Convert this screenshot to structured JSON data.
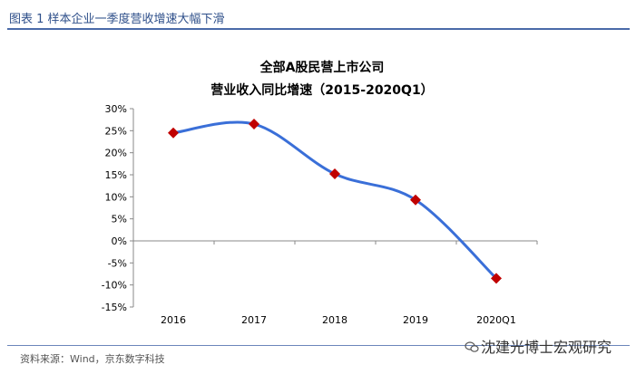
{
  "figure": {
    "title": "图表 1 样本企业一季度营收增速大幅下滑",
    "source": "资料来源：Wind，京东数字科技",
    "watermark": "沈建光博士宏观研究"
  },
  "chart_data": {
    "type": "line",
    "title": "全部A股民营上市公司",
    "subtitle": "营业收入同比增速（2015-2020Q1）",
    "categories": [
      "2016",
      "2017",
      "2018",
      "2019",
      "2020Q1"
    ],
    "series": [
      {
        "values": [
          24.5,
          26.5,
          15.2,
          9.3,
          -8.5
        ]
      }
    ],
    "ylim": [
      -15,
      30
    ],
    "yticks": [
      "-15%",
      "-10%",
      "-5%",
      "0%",
      "5%",
      "10%",
      "15%",
      "20%",
      "25%",
      "30%"
    ],
    "xlabel": "",
    "ylabel": "",
    "grid": false,
    "colors": {
      "line": "#3a6fd8",
      "marker": "#c00000"
    }
  }
}
